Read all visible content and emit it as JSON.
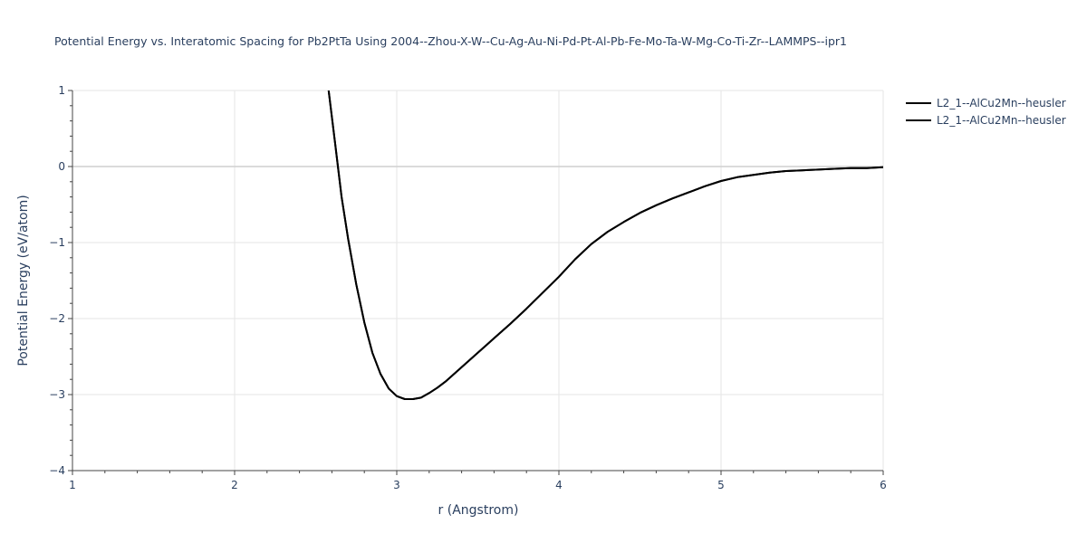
{
  "chart_data": {
    "type": "line",
    "title": "Potential Energy vs. Interatomic Spacing for Pb2PtTa Using 2004--Zhou-X-W--Cu-Ag-Au-Ni-Pd-Pt-Al-Pb-Fe-Mo-Ta-W-Mg-Co-Ti-Zr--LAMMPS--ipr1",
    "xlabel": "r (Angstrom)",
    "ylabel": "Potential Energy (eV/atom)",
    "xlim": [
      1,
      6
    ],
    "ylim": [
      -4,
      1
    ],
    "x_ticks": [
      1,
      2,
      3,
      4,
      5,
      6
    ],
    "x_tick_labels": [
      "1",
      "2",
      "3",
      "4",
      "5",
      "6"
    ],
    "y_ticks": [
      1,
      0,
      -1,
      -2,
      -3,
      -4
    ],
    "y_tick_labels": [
      "1",
      "0",
      "−1",
      "−2",
      "−3",
      "−4"
    ],
    "grid": true,
    "legend_position": "top-right",
    "series": [
      {
        "name": "L2_1--AlCu2Mn--heusler",
        "color": "#000000",
        "x": [
          2.58,
          2.62,
          2.66,
          2.7,
          2.75,
          2.8,
          2.85,
          2.9,
          2.95,
          3.0,
          3.05,
          3.1,
          3.15,
          3.2,
          3.25,
          3.3,
          3.4,
          3.5,
          3.6,
          3.7,
          3.8,
          3.9,
          4.0,
          4.1,
          4.2,
          4.3,
          4.4,
          4.5,
          4.6,
          4.7,
          4.8,
          4.9,
          5.0,
          5.1,
          5.2,
          5.3,
          5.4,
          5.5,
          5.6,
          5.7,
          5.8,
          5.9,
          6.0
        ],
        "y": [
          1.0,
          0.3,
          -0.4,
          -0.95,
          -1.55,
          -2.05,
          -2.45,
          -2.73,
          -2.92,
          -3.02,
          -3.06,
          -3.06,
          -3.04,
          -2.98,
          -2.91,
          -2.83,
          -2.64,
          -2.45,
          -2.26,
          -2.07,
          -1.87,
          -1.66,
          -1.45,
          -1.22,
          -1.02,
          -0.86,
          -0.73,
          -0.61,
          -0.51,
          -0.42,
          -0.34,
          -0.26,
          -0.19,
          -0.14,
          -0.11,
          -0.08,
          -0.06,
          -0.05,
          -0.04,
          -0.03,
          -0.02,
          -0.02,
          -0.01
        ]
      },
      {
        "name": "L2_1--AlCu2Mn--heusler",
        "color": "#000000",
        "x": [
          2.58,
          2.62,
          2.66,
          2.7,
          2.75,
          2.8,
          2.85,
          2.9,
          2.95,
          3.0,
          3.05,
          3.1,
          3.15,
          3.2,
          3.25,
          3.3,
          3.4,
          3.5,
          3.6,
          3.7,
          3.8,
          3.9,
          4.0,
          4.1,
          4.2,
          4.3,
          4.4,
          4.5,
          4.6,
          4.7,
          4.8,
          4.9,
          5.0,
          5.1,
          5.2,
          5.3,
          5.4,
          5.5,
          5.6,
          5.7,
          5.8,
          5.9,
          6.0
        ],
        "y": [
          1.0,
          0.3,
          -0.4,
          -0.95,
          -1.55,
          -2.05,
          -2.45,
          -2.73,
          -2.92,
          -3.02,
          -3.06,
          -3.06,
          -3.04,
          -2.98,
          -2.91,
          -2.83,
          -2.64,
          -2.45,
          -2.26,
          -2.07,
          -1.87,
          -1.66,
          -1.45,
          -1.22,
          -1.02,
          -0.86,
          -0.73,
          -0.61,
          -0.51,
          -0.42,
          -0.34,
          -0.26,
          -0.19,
          -0.14,
          -0.11,
          -0.08,
          -0.06,
          -0.05,
          -0.04,
          -0.03,
          -0.02,
          -0.02,
          -0.01
        ]
      }
    ]
  }
}
